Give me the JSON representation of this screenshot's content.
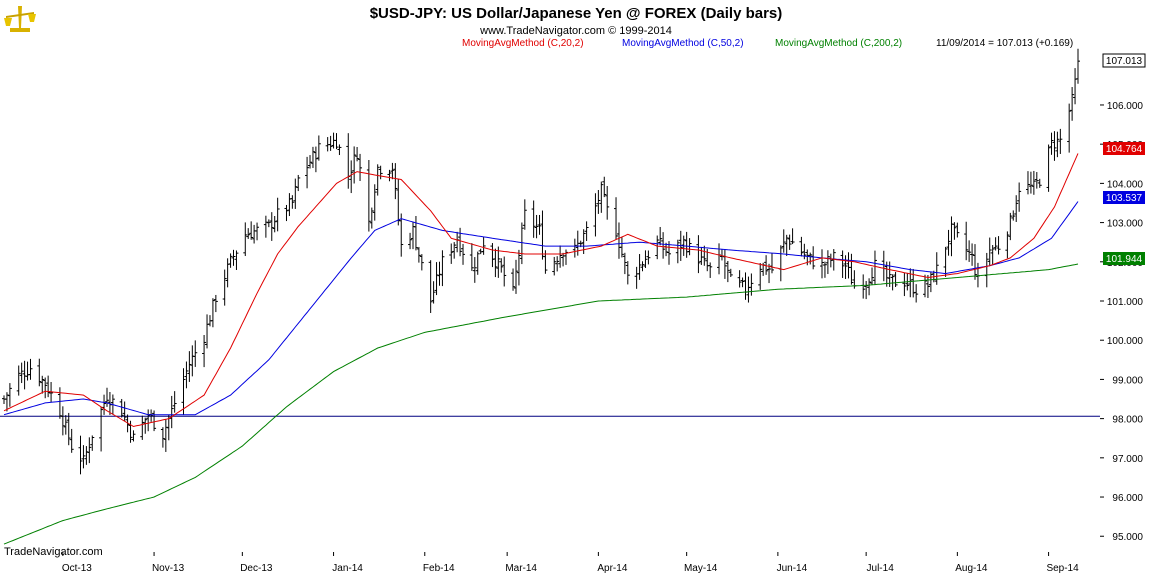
{
  "header": {
    "title": "$USD-JPY:  US Dollar/Japanese Yen @ FOREX  (Daily bars)",
    "copyright": "www.TradeNavigator.com © 1999-2014",
    "watermark": "TradeNavigator.com"
  },
  "legend": {
    "ma20": "MovingAvgMethod (C,20,2)",
    "ma50": "MovingAvgMethod (C,50,2)",
    "ma200": "MovingAvgMethod (C,200,2)",
    "last_info": "11/09/2014 = 107.013 (+0.169)"
  },
  "colors": {
    "ma20": "#e00000",
    "ma50": "#0000e0",
    "ma200": "#008000",
    "bars": "#000000",
    "hline": "#000080"
  },
  "price_tags": {
    "close": "107.013",
    "ma20": "104.764",
    "ma50": "103.537",
    "ma200": "101.944"
  },
  "chart_data": {
    "type": "ohlc",
    "title": "$USD-JPY:  US Dollar/Japanese Yen @ FOREX  (Daily bars)",
    "ylim": [
      94.7,
      107.3
    ],
    "y_ticks": [
      "95.000",
      "96.000",
      "97.000",
      "98.000",
      "99.000",
      "100.000",
      "101.000",
      "102.000",
      "103.000",
      "104.000",
      "105.000",
      "106.000"
    ],
    "y_tick_values": [
      95,
      96,
      97,
      98,
      99,
      100,
      101,
      102,
      103,
      104,
      105,
      106
    ],
    "x_ticks": [
      "Oct-13",
      "Nov-13",
      "Dec-13",
      "Jan-14",
      "Feb-14",
      "Mar-14",
      "Apr-14",
      "May-14",
      "Jun-14",
      "Jul-14",
      "Aug-14",
      "Sep-14"
    ],
    "x_tick_dates": [
      "2013-10-01",
      "2013-11-01",
      "2013-12-01",
      "2014-01-01",
      "2014-02-01",
      "2014-03-01",
      "2014-04-01",
      "2014-05-01",
      "2014-06-01",
      "2014-07-01",
      "2014-08-01",
      "2014-09-01"
    ],
    "date_range": [
      "2013-09-11",
      "2014-09-11"
    ],
    "horizontal_line": 98.06,
    "close_anchors": [
      [
        "2013-09-11",
        98.5
      ],
      [
        "2013-09-16",
        99.1
      ],
      [
        "2013-09-20",
        99.3
      ],
      [
        "2013-09-25",
        98.9
      ],
      [
        "2013-09-30",
        98.2
      ],
      [
        "2013-10-04",
        97.3
      ],
      [
        "2013-10-08",
        96.9
      ],
      [
        "2013-10-11",
        97.6
      ],
      [
        "2013-10-16",
        98.6
      ],
      [
        "2013-10-21",
        98.2
      ],
      [
        "2013-10-25",
        97.5
      ],
      [
        "2013-10-30",
        98.1
      ],
      [
        "2013-11-04",
        97.6
      ],
      [
        "2013-11-08",
        98.4
      ],
      [
        "2013-11-13",
        99.4
      ],
      [
        "2013-11-18",
        100.1
      ],
      [
        "2013-11-22",
        101.1
      ],
      [
        "2013-11-27",
        102.0
      ],
      [
        "2013-12-02",
        102.7
      ],
      [
        "2013-12-06",
        102.8
      ],
      [
        "2013-12-10",
        102.9
      ],
      [
        "2013-12-13",
        103.2
      ],
      [
        "2013-12-18",
        103.5
      ],
      [
        "2013-12-20",
        104.1
      ],
      [
        "2013-12-27",
        104.9
      ],
      [
        "2014-01-02",
        105.1
      ],
      [
        "2014-01-06",
        104.2
      ],
      [
        "2014-01-09",
        104.8
      ],
      [
        "2014-01-13",
        103.0
      ],
      [
        "2014-01-16",
        104.4
      ],
      [
        "2014-01-21",
        104.4
      ],
      [
        "2014-01-24",
        102.4
      ],
      [
        "2014-01-28",
        102.8
      ],
      [
        "2014-02-03",
        101.0
      ],
      [
        "2014-02-07",
        102.0
      ],
      [
        "2014-02-12",
        102.6
      ],
      [
        "2014-02-17",
        101.8
      ],
      [
        "2014-02-21",
        102.5
      ],
      [
        "2014-02-27",
        101.8
      ],
      [
        "2014-03-03",
        101.2
      ],
      [
        "2014-03-07",
        103.2
      ],
      [
        "2014-03-12",
        102.8
      ],
      [
        "2014-03-14",
        101.8
      ],
      [
        "2014-03-20",
        102.3
      ],
      [
        "2014-03-24",
        102.3
      ],
      [
        "2014-03-28",
        102.8
      ],
      [
        "2014-04-02",
        103.8
      ],
      [
        "2014-04-04",
        103.3
      ],
      [
        "2014-04-07",
        102.8
      ],
      [
        "2014-04-11",
        101.6
      ],
      [
        "2014-04-15",
        101.9
      ],
      [
        "2014-04-21",
        102.5
      ],
      [
        "2014-04-25",
        102.2
      ],
      [
        "2014-04-30",
        102.5
      ],
      [
        "2014-05-05",
        102.1
      ],
      [
        "2014-05-09",
        101.8
      ],
      [
        "2014-05-13",
        102.1
      ],
      [
        "2014-05-16",
        101.5
      ],
      [
        "2014-05-21",
        101.3
      ],
      [
        "2014-05-26",
        101.9
      ],
      [
        "2014-05-30",
        101.8
      ],
      [
        "2014-06-04",
        102.6
      ],
      [
        "2014-06-06",
        102.5
      ],
      [
        "2014-06-11",
        102.1
      ],
      [
        "2014-06-16",
        101.9
      ],
      [
        "2014-06-20",
        102.1
      ],
      [
        "2014-06-24",
        101.9
      ],
      [
        "2014-06-27",
        101.4
      ],
      [
        "2014-07-01",
        101.5
      ],
      [
        "2014-07-04",
        101.9
      ],
      [
        "2014-07-09",
        101.5
      ],
      [
        "2014-07-14",
        101.5
      ],
      [
        "2014-07-18",
        101.3
      ],
      [
        "2014-07-22",
        101.4
      ],
      [
        "2014-07-25",
        101.8
      ],
      [
        "2014-07-30",
        102.8
      ],
      [
        "2014-08-01",
        102.6
      ],
      [
        "2014-08-06",
        102.1
      ],
      [
        "2014-08-08",
        101.5
      ],
      [
        "2014-08-12",
        102.3
      ],
      [
        "2014-08-15",
        102.4
      ],
      [
        "2014-08-19",
        103.0
      ],
      [
        "2014-08-22",
        103.9
      ],
      [
        "2014-08-27",
        103.9
      ],
      [
        "2014-08-29",
        104.1
      ],
      [
        "2014-09-02",
        105.0
      ],
      [
        "2014-09-05",
        105.1
      ],
      [
        "2014-09-09",
        106.1
      ],
      [
        "2014-09-11",
        107.013
      ]
    ],
    "ma20_anchors": [
      [
        "2013-09-11",
        98.2
      ],
      [
        "2013-09-25",
        98.7
      ],
      [
        "2013-10-08",
        98.6
      ],
      [
        "2013-10-16",
        98.2
      ],
      [
        "2013-10-25",
        97.8
      ],
      [
        "2013-11-06",
        98.0
      ],
      [
        "2013-11-18",
        98.6
      ],
      [
        "2013-11-27",
        99.8
      ],
      [
        "2013-12-06",
        101.2
      ],
      [
        "2013-12-13",
        102.2
      ],
      [
        "2013-12-20",
        102.9
      ],
      [
        "2014-01-02",
        104.0
      ],
      [
        "2014-01-09",
        104.3
      ],
      [
        "2014-01-16",
        104.2
      ],
      [
        "2014-01-24",
        104.1
      ],
      [
        "2014-02-03",
        103.3
      ],
      [
        "2014-02-10",
        102.6
      ],
      [
        "2014-02-24",
        102.3
      ],
      [
        "2014-03-07",
        102.2
      ],
      [
        "2014-03-20",
        102.2
      ],
      [
        "2014-04-02",
        102.4
      ],
      [
        "2014-04-11",
        102.7
      ],
      [
        "2014-04-21",
        102.4
      ],
      [
        "2014-05-05",
        102.3
      ],
      [
        "2014-05-16",
        102.1
      ],
      [
        "2014-06-03",
        101.8
      ],
      [
        "2014-06-16",
        102.1
      ],
      [
        "2014-06-27",
        102.0
      ],
      [
        "2014-07-09",
        101.8
      ],
      [
        "2014-07-22",
        101.6
      ],
      [
        "2014-08-01",
        101.7
      ],
      [
        "2014-08-12",
        101.9
      ],
      [
        "2014-08-19",
        102.1
      ],
      [
        "2014-08-27",
        102.6
      ],
      [
        "2014-09-03",
        103.4
      ],
      [
        "2014-09-11",
        104.764
      ]
    ],
    "ma50_anchors": [
      [
        "2013-09-11",
        98.1
      ],
      [
        "2013-09-25",
        98.4
      ],
      [
        "2013-10-08",
        98.5
      ],
      [
        "2013-10-16",
        98.4
      ],
      [
        "2013-10-30",
        98.1
      ],
      [
        "2013-11-15",
        98.1
      ],
      [
        "2013-11-27",
        98.6
      ],
      [
        "2013-12-10",
        99.5
      ],
      [
        "2013-12-24",
        100.8
      ],
      [
        "2014-01-07",
        102.1
      ],
      [
        "2014-01-15",
        102.8
      ],
      [
        "2014-01-24",
        103.1
      ],
      [
        "2014-02-07",
        102.8
      ],
      [
        "2014-02-24",
        102.6
      ],
      [
        "2014-03-14",
        102.4
      ],
      [
        "2014-03-28",
        102.4
      ],
      [
        "2014-04-15",
        102.5
      ],
      [
        "2014-05-01",
        102.4
      ],
      [
        "2014-05-16",
        102.3
      ],
      [
        "2014-06-03",
        102.2
      ],
      [
        "2014-06-16",
        102.1
      ],
      [
        "2014-07-01",
        102.0
      ],
      [
        "2014-07-16",
        101.8
      ],
      [
        "2014-07-28",
        101.7
      ],
      [
        "2014-08-12",
        101.9
      ],
      [
        "2014-08-22",
        102.1
      ],
      [
        "2014-09-02",
        102.6
      ],
      [
        "2014-09-11",
        103.537
      ]
    ],
    "ma200_anchors": [
      [
        "2013-09-11",
        94.8
      ],
      [
        "2013-10-01",
        95.4
      ],
      [
        "2013-10-16",
        95.7
      ],
      [
        "2013-11-01",
        96.0
      ],
      [
        "2013-11-15",
        96.5
      ],
      [
        "2013-12-01",
        97.3
      ],
      [
        "2013-12-16",
        98.3
      ],
      [
        "2014-01-01",
        99.2
      ],
      [
        "2014-01-16",
        99.8
      ],
      [
        "2014-02-01",
        100.2
      ],
      [
        "2014-03-01",
        100.6
      ],
      [
        "2014-04-01",
        101.0
      ],
      [
        "2014-05-01",
        101.1
      ],
      [
        "2014-06-01",
        101.3
      ],
      [
        "2014-07-01",
        101.4
      ],
      [
        "2014-08-01",
        101.6
      ],
      [
        "2014-09-01",
        101.8
      ],
      [
        "2014-09-11",
        101.944
      ]
    ]
  }
}
